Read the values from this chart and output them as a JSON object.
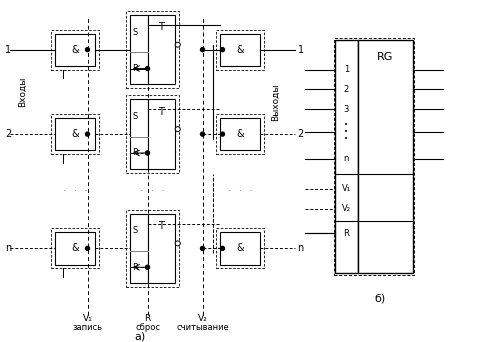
{
  "bg_color": "#ffffff",
  "line_color": "#000000",
  "fig_width": 5.0,
  "fig_height": 3.42,
  "dpi": 100,
  "part_a_label": "а)",
  "part_b_label": "б)",
  "and_label": "&",
  "T_label": "T",
  "S_label": "S",
  "R_label": "R",
  "RG_label": "RG",
  "inputs_label": "Входы",
  "outputs_label": "Выходы",
  "row_labels": [
    "1",
    "2",
    "n"
  ],
  "bottom_v1": "V₁",
  "bottom_v1_sub": "запись",
  "bottom_r": "R",
  "bottom_r_sub": "сброс",
  "bottom_v2": "V₂",
  "bottom_v2_sub": "считывание",
  "rg_pins_left": [
    "1",
    "2",
    "3",
    "•\n•\n•",
    "n",
    "V₁",
    "V₂",
    "R"
  ]
}
